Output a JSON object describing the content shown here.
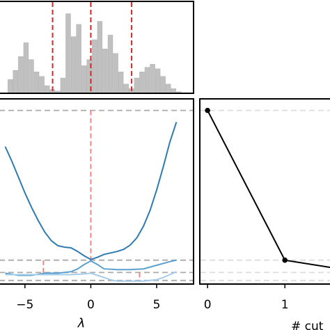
{
  "chart_data": [
    {
      "type": "bar",
      "panel": "histogram",
      "bins": [
        {
          "x": -6.1,
          "h": 18
        },
        {
          "x": -5.7,
          "h": 30
        },
        {
          "x": -5.3,
          "h": 48
        },
        {
          "x": -4.9,
          "h": 66
        },
        {
          "x": -4.5,
          "h": 44
        },
        {
          "x": -4.1,
          "h": 28
        },
        {
          "x": -3.7,
          "h": 22
        },
        {
          "x": -3.3,
          "h": 10
        },
        {
          "x": -2.9,
          "h": 5
        },
        {
          "x": -2.5,
          "h": 3
        },
        {
          "x": -2.1,
          "h": 20
        },
        {
          "x": -1.7,
          "h": 104
        },
        {
          "x": -1.3,
          "h": 74
        },
        {
          "x": -0.9,
          "h": 90
        },
        {
          "x": -0.5,
          "h": 36
        },
        {
          "x": -0.1,
          "h": 44
        },
        {
          "x": 0.3,
          "h": 70
        },
        {
          "x": 0.7,
          "h": 94
        },
        {
          "x": 1.1,
          "h": 58
        },
        {
          "x": 1.5,
          "h": 76
        },
        {
          "x": 1.9,
          "h": 52
        },
        {
          "x": 2.3,
          "h": 28
        },
        {
          "x": 2.7,
          "h": 12
        },
        {
          "x": 3.1,
          "h": 6
        },
        {
          "x": 3.5,
          "h": 20
        },
        {
          "x": 3.9,
          "h": 28
        },
        {
          "x": 4.3,
          "h": 34
        },
        {
          "x": 4.7,
          "h": 38
        },
        {
          "x": 5.1,
          "h": 32
        },
        {
          "x": 5.5,
          "h": 22
        },
        {
          "x": 5.9,
          "h": 12
        },
        {
          "x": 6.3,
          "h": 6
        },
        {
          "x": 6.7,
          "h": 2
        }
      ],
      "bin_width": 0.4,
      "xlim": [
        -7.0,
        7.8
      ],
      "ylim": [
        0,
        120
      ],
      "cut_lines_x": [
        -2.9,
        0.0,
        3.1
      ],
      "cut_line_color": "#d62728",
      "bar_color": "#c0c0c0"
    },
    {
      "type": "line",
      "panel": "main",
      "xlabel": "λ",
      "xticks": [
        "−5",
        "0",
        "5"
      ],
      "xtick_values": [
        -5,
        0,
        5
      ],
      "xlim": [
        -7.0,
        7.8
      ],
      "ylim": [
        0,
        12.8
      ],
      "series": [
        {
          "color": "#2e7bb4",
          "x": [
            -6.5,
            -6.0,
            -5.5,
            -5.0,
            -4.5,
            -4.0,
            -3.5,
            -3.0,
            -2.5,
            -2.0,
            -1.5,
            -1.0,
            -0.5,
            0.0,
            0.5,
            1.0,
            1.5,
            2.0,
            2.5,
            3.0,
            3.5,
            4.0,
            4.5,
            5.0,
            5.5,
            6.0,
            6.5
          ],
          "y": [
            9.5,
            8.5,
            7.4,
            6.3,
            5.3,
            4.4,
            3.6,
            3.0,
            2.65,
            2.55,
            2.5,
            2.25,
            1.95,
            1.7,
            1.85,
            2.05,
            2.15,
            2.25,
            2.4,
            2.7,
            3.2,
            4.0,
            5.1,
            6.5,
            8.1,
            9.8,
            11.2
          ]
        },
        {
          "color": "#5b9fd0",
          "x": [
            -6.5,
            -5.5,
            -4.5,
            -3.5,
            -2.5,
            -1.5,
            -1.0,
            -0.5,
            0.0,
            0.5,
            1.0,
            2.0,
            3.0,
            4.0,
            5.0,
            6.0,
            6.5
          ],
          "y": [
            0.75,
            0.6,
            0.6,
            0.75,
            0.75,
            0.85,
            1.05,
            1.35,
            1.6,
            1.35,
            1.05,
            1.0,
            1.0,
            1.05,
            1.3,
            1.55,
            1.65
          ]
        },
        {
          "color": "#a6cce9",
          "x": [
            -6.5,
            -5.5,
            -4.5,
            -3.5,
            -2.5,
            -1.5,
            -0.5,
            0.0,
            0.5,
            1.0,
            1.5,
            2.0,
            3.0,
            4.0,
            5.0,
            5.5,
            6.0,
            6.5
          ],
          "y": [
            0.65,
            0.65,
            0.65,
            0.65,
            0.65,
            0.65,
            0.7,
            0.75,
            0.6,
            0.45,
            0.3,
            0.2,
            0.2,
            0.2,
            0.3,
            0.45,
            0.65,
            0.85
          ]
        }
      ],
      "hlines_y": [
        12.0,
        1.65,
        0.8,
        0.25
      ],
      "hline_color": "#aaaaaa",
      "vlines": [
        {
          "x": 0.0,
          "y_from": 1.7,
          "y_to": 12.0
        },
        {
          "x": -3.6,
          "y_from": 0.65,
          "y_to": 1.65
        },
        {
          "x": 3.7,
          "y_from": 0.25,
          "y_to": 0.8
        }
      ],
      "vline_color": "#f08080"
    },
    {
      "type": "line",
      "panel": "right",
      "xlabel": "# cut",
      "xticks": [
        "0",
        "1"
      ],
      "xtick_values": [
        0,
        1
      ],
      "xlim": [
        -0.1,
        1.7
      ],
      "ylim": [
        0,
        12.8
      ],
      "series": [
        {
          "color": "#000000",
          "x": [
            0,
            1,
            2
          ],
          "y": [
            12.0,
            1.65,
            0.8
          ]
        }
      ],
      "hlines_y": [
        12.0,
        1.65,
        0.8,
        0.25
      ],
      "hline_color": "#dddddd"
    }
  ]
}
